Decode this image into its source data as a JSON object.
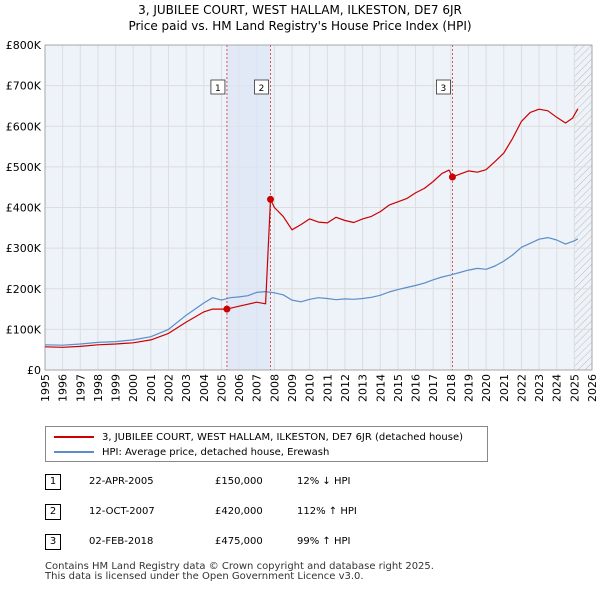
{
  "title_line1": "3, JUBILEE COURT, WEST HALLAM, ILKESTON, DE7 6JR",
  "title_line2": "Price paid vs. HM Land Registry's House Price Index (HPI)",
  "colors": {
    "property": "#cc0000",
    "hpi": "#5b8ec9",
    "grid": "#dddddd",
    "plot_bg": "#eef2f9",
    "vline": "#cc3333",
    "hatch": "#bbbbbb"
  },
  "chart_data": {
    "type": "line",
    "xlim": [
      1995,
      2026
    ],
    "ylim": [
      0,
      800000
    ],
    "xticks": [
      1995,
      1996,
      1997,
      1998,
      1999,
      2000,
      2001,
      2002,
      2003,
      2004,
      2005,
      2006,
      2007,
      2008,
      2009,
      2010,
      2011,
      2012,
      2013,
      2014,
      2015,
      2016,
      2017,
      2018,
      2019,
      2020,
      2021,
      2022,
      2023,
      2024,
      2025,
      2026
    ],
    "yticks": [
      {
        "value": 0,
        "label": "£0"
      },
      {
        "value": 100000,
        "label": "£100K"
      },
      {
        "value": 200000,
        "label": "£200K"
      },
      {
        "value": 300000,
        "label": "£300K"
      },
      {
        "value": 400000,
        "label": "£400K"
      },
      {
        "value": 500000,
        "label": "£500K"
      },
      {
        "value": 600000,
        "label": "£600K"
      },
      {
        "value": 700000,
        "label": "£700K"
      },
      {
        "value": 800000,
        "label": "£800K"
      }
    ],
    "forecast_from": 2025.0,
    "series": [
      {
        "name": "3, JUBILEE COURT, WEST HALLAM, ILKESTON, DE7 6JR (detached house)",
        "x": [
          1995.0,
          1996.0,
          1997.0,
          1998.0,
          1999.0,
          2000.0,
          2001.0,
          2002.0,
          2003.0,
          2004.0,
          2004.5,
          2005.31,
          2006.0,
          2007.0,
          2007.5,
          2007.78,
          2008.0,
          2008.5,
          2009.0,
          2009.5,
          2010.0,
          2010.5,
          2011.0,
          2011.5,
          2012.0,
          2012.5,
          2013.0,
          2013.5,
          2014.0,
          2014.5,
          2015.0,
          2015.5,
          2016.0,
          2016.5,
          2017.0,
          2017.5,
          2017.9,
          2018.09,
          2018.5,
          2019.0,
          2019.5,
          2020.0,
          2020.5,
          2021.0,
          2021.5,
          2022.0,
          2022.5,
          2023.0,
          2023.5,
          2024.0,
          2024.5,
          2024.9,
          2025.2
        ],
        "values": [
          57000,
          56000,
          58000,
          62000,
          64000,
          67000,
          74000,
          90000,
          118000,
          143000,
          150000,
          150000,
          157000,
          167000,
          163000,
          420000,
          400000,
          378000,
          345000,
          358000,
          372000,
          364000,
          362000,
          376000,
          368000,
          363000,
          372000,
          378000,
          390000,
          406000,
          414000,
          422000,
          436000,
          447000,
          464000,
          484000,
          492000,
          475000,
          482000,
          490000,
          487000,
          493000,
          513000,
          534000,
          570000,
          612000,
          634000,
          642000,
          638000,
          622000,
          608000,
          620000,
          643000
        ]
      },
      {
        "name": "HPI: Average price, detached house, Erewash",
        "x": [
          1995.0,
          1996.0,
          1997.0,
          1998.0,
          1999.0,
          2000.0,
          2001.0,
          2002.0,
          2003.0,
          2004.0,
          2004.5,
          2005.0,
          2005.5,
          2006.0,
          2006.5,
          2007.0,
          2007.5,
          2008.0,
          2008.5,
          2009.0,
          2009.5,
          2010.0,
          2010.5,
          2011.0,
          2011.5,
          2012.0,
          2012.5,
          2013.0,
          2013.5,
          2014.0,
          2014.5,
          2015.0,
          2015.5,
          2016.0,
          2016.5,
          2017.0,
          2017.5,
          2018.0,
          2018.5,
          2019.0,
          2019.5,
          2020.0,
          2020.5,
          2021.0,
          2021.5,
          2022.0,
          2022.5,
          2023.0,
          2023.5,
          2024.0,
          2024.5,
          2025.0,
          2025.2
        ],
        "values": [
          62000,
          61000,
          64000,
          68000,
          70000,
          74000,
          82000,
          100000,
          135000,
          165000,
          178000,
          172000,
          178000,
          180000,
          183000,
          191000,
          193000,
          190000,
          185000,
          172000,
          168000,
          174000,
          178000,
          176000,
          173000,
          175000,
          174000,
          176000,
          179000,
          184000,
          192000,
          198000,
          203000,
          208000,
          214000,
          222000,
          229000,
          234000,
          240000,
          246000,
          250000,
          248000,
          256000,
          268000,
          283000,
          302000,
          312000,
          322000,
          326000,
          320000,
          310000,
          318000,
          323000
        ]
      }
    ],
    "sales": [
      {
        "num": "1",
        "x": 2005.31,
        "value": 150000
      },
      {
        "num": "2",
        "x": 2007.78,
        "value": 420000
      },
      {
        "num": "3",
        "x": 2018.09,
        "value": 475000
      }
    ]
  },
  "legend": {
    "property_label": "3, JUBILEE COURT, WEST HALLAM, ILKESTON, DE7 6JR (detached house)",
    "hpi_label": "HPI: Average price, detached house, Erewash"
  },
  "transactions": [
    {
      "num": "1",
      "date": "22-APR-2005",
      "price": "£150,000",
      "hpi": "12% ↓ HPI"
    },
    {
      "num": "2",
      "date": "12-OCT-2007",
      "price": "£420,000",
      "hpi": "112% ↑ HPI"
    },
    {
      "num": "3",
      "date": "02-FEB-2018",
      "price": "£475,000",
      "hpi": "99% ↑ HPI"
    }
  ],
  "footer_line1": "Contains HM Land Registry data © Crown copyright and database right 2025.",
  "footer_line2": "This data is licensed under the Open Government Licence v3.0."
}
